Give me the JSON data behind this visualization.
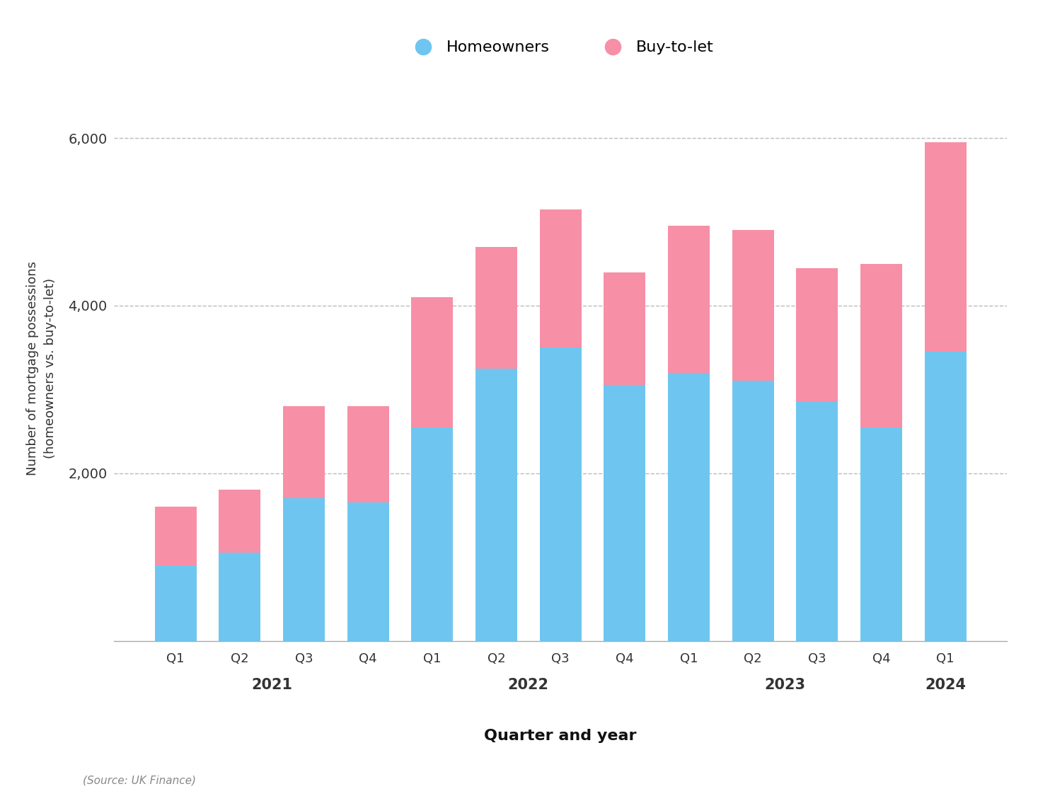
{
  "categories": [
    "Q1",
    "Q2",
    "Q3",
    "Q4",
    "Q1",
    "Q2",
    "Q3",
    "Q4",
    "Q1",
    "Q2",
    "Q3",
    "Q4",
    "Q1"
  ],
  "years": [
    "2021",
    "2021",
    "2021",
    "2021",
    "2022",
    "2022",
    "2022",
    "2022",
    "2023",
    "2023",
    "2023",
    "2023",
    "2024"
  ],
  "year_labels": [
    "2021",
    "2022",
    "2023",
    "2024"
  ],
  "homeowners": [
    900,
    1050,
    1700,
    1650,
    2550,
    3250,
    3500,
    3050,
    3200,
    3100,
    2850,
    2550,
    3450
  ],
  "buy_to_let": [
    700,
    750,
    1100,
    1150,
    1550,
    1450,
    1650,
    1350,
    1750,
    1800,
    1600,
    1950,
    2500
  ],
  "homeowners_color": "#6EC6F0",
  "buy_to_let_color": "#F78FA7",
  "ylabel": "Number of mortgage possessions\n(homeowners vs. buy-to-let)",
  "xlabel": "Quarter and year",
  "source": "(Source: UK Finance)",
  "ylim": [
    0,
    6500
  ],
  "yticks": [
    2000,
    4000,
    6000
  ],
  "background_color": "#ffffff",
  "grid_color": "#bbbbbb",
  "legend_homeowners": "Homeowners",
  "legend_btl": "Buy-to-let",
  "bar_width": 0.65
}
